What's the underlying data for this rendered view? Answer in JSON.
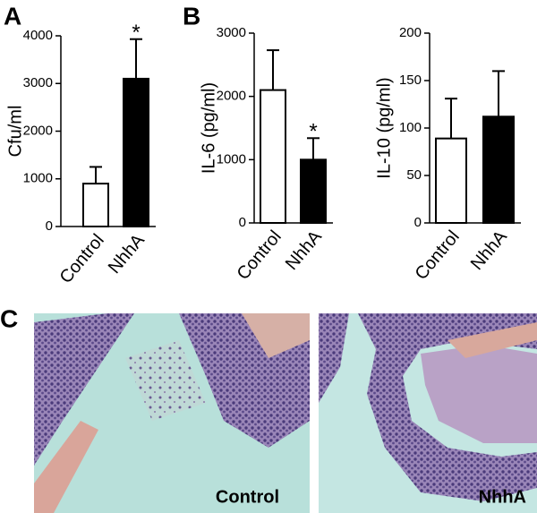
{
  "chart_data": [
    {
      "type": "bar",
      "panel_label": "A",
      "ylabel": "Cfu/ml",
      "categories": [
        "Control",
        "NhhA"
      ],
      "values": [
        900,
        3100
      ],
      "errors": [
        350,
        830
      ],
      "colors": [
        "#ffffff",
        "#000000"
      ],
      "annotations": [
        null,
        "*"
      ],
      "ylim": [
        0,
        4000
      ],
      "yticks": [
        0,
        1000,
        2000,
        3000,
        4000
      ]
    },
    {
      "type": "bar",
      "panel_label": "B",
      "ylabel": "IL-6 (pg/ml)",
      "categories": [
        "Control",
        "NhhA"
      ],
      "values": [
        2100,
        1000
      ],
      "errors": [
        630,
        340
      ],
      "colors": [
        "#ffffff",
        "#000000"
      ],
      "annotations": [
        null,
        "*"
      ],
      "ylim": [
        0,
        3000
      ],
      "yticks": [
        0,
        1000,
        2000,
        3000
      ]
    },
    {
      "type": "bar",
      "ylabel": "IL-10 (pg/ml)",
      "categories": [
        "Control",
        "NhhA"
      ],
      "values": [
        89,
        112
      ],
      "errors": [
        42,
        48
      ],
      "colors": [
        "#ffffff",
        "#000000"
      ],
      "ylim": [
        0,
        200
      ],
      "yticks": [
        0,
        50,
        100,
        150,
        200
      ]
    }
  ],
  "panel_c": {
    "label": "C",
    "images": [
      {
        "label": "Control"
      },
      {
        "label": "NhhA"
      }
    ]
  }
}
